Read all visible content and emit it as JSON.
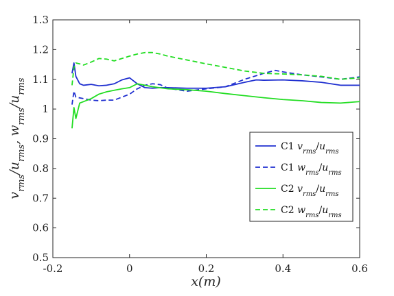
{
  "chart_data": {
    "type": "line",
    "xlabel": "x(m)",
    "ylabel": "v_rms/u_rms, w_rms/u_rms",
    "xlim": [
      -0.2,
      0.6
    ],
    "ylim": [
      0.5,
      1.3
    ],
    "xticks": [
      -0.2,
      0,
      0.2,
      0.4,
      0.6
    ],
    "xtick_labels": [
      "-0.2",
      "0",
      "0.2",
      "0.4",
      "0.6"
    ],
    "yticks": [
      0.5,
      0.6,
      0.7,
      0.8,
      0.9,
      1.0,
      1.1,
      1.2,
      1.3
    ],
    "ytick_labels": [
      "0.5",
      "0.6",
      "0.7",
      "0.8",
      "0.9",
      "1",
      "1.1",
      "1.2",
      "1.3"
    ],
    "grid": false,
    "legend_position": "bottom-right",
    "series": [
      {
        "name": "C1 v_rms/u_rms",
        "legend_prefix": "C1 ",
        "legend_base": "v",
        "legend_sub": "rms",
        "legend_den_base": "u",
        "legend_den_sub": "rms",
        "color": "#1f2fd0",
        "dash": "solid",
        "x": [
          -0.15,
          -0.145,
          -0.14,
          -0.13,
          -0.12,
          -0.1,
          -0.08,
          -0.06,
          -0.04,
          -0.02,
          0.0,
          0.02,
          0.04,
          0.06,
          0.08,
          0.1,
          0.15,
          0.2,
          0.25,
          0.3,
          0.33,
          0.35,
          0.4,
          0.45,
          0.5,
          0.55,
          0.6
        ],
        "y": [
          1.12,
          1.155,
          1.11,
          1.085,
          1.08,
          1.083,
          1.078,
          1.08,
          1.085,
          1.098,
          1.105,
          1.085,
          1.072,
          1.07,
          1.072,
          1.072,
          1.07,
          1.07,
          1.075,
          1.09,
          1.098,
          1.097,
          1.098,
          1.095,
          1.09,
          1.08,
          1.08
        ]
      },
      {
        "name": "C1 w_rms/u_rms",
        "legend_prefix": "C1 ",
        "legend_base": "w",
        "legend_sub": "rms",
        "legend_den_base": "u",
        "legend_den_sub": "rms",
        "color": "#1f2fd0",
        "dash": "dashed",
        "x": [
          -0.15,
          -0.145,
          -0.14,
          -0.12,
          -0.1,
          -0.08,
          -0.06,
          -0.04,
          -0.02,
          0.0,
          0.02,
          0.04,
          0.06,
          0.08,
          0.1,
          0.15,
          0.2,
          0.25,
          0.3,
          0.35,
          0.38,
          0.4,
          0.45,
          0.5,
          0.55,
          0.6
        ],
        "y": [
          1.015,
          1.06,
          1.04,
          1.035,
          1.03,
          1.028,
          1.03,
          1.03,
          1.04,
          1.05,
          1.068,
          1.08,
          1.085,
          1.082,
          1.07,
          1.06,
          1.068,
          1.075,
          1.1,
          1.12,
          1.13,
          1.125,
          1.115,
          1.108,
          1.1,
          1.108
        ]
      },
      {
        "name": "C2 v_rms/u_rms",
        "legend_prefix": "C2 ",
        "legend_base": "v",
        "legend_sub": "rms",
        "legend_den_base": "u",
        "legend_den_sub": "rms",
        "color": "#22dd22",
        "dash": "solid",
        "x": [
          -0.15,
          -0.145,
          -0.14,
          -0.13,
          -0.12,
          -0.1,
          -0.08,
          -0.06,
          -0.04,
          -0.02,
          0.0,
          0.02,
          0.04,
          0.06,
          0.1,
          0.15,
          0.2,
          0.25,
          0.3,
          0.35,
          0.4,
          0.45,
          0.5,
          0.55,
          0.6
        ],
        "y": [
          0.935,
          1.005,
          0.968,
          1.02,
          1.025,
          1.035,
          1.05,
          1.058,
          1.063,
          1.068,
          1.072,
          1.085,
          1.08,
          1.075,
          1.068,
          1.065,
          1.06,
          1.052,
          1.045,
          1.038,
          1.032,
          1.028,
          1.022,
          1.02,
          1.025
        ]
      },
      {
        "name": "C2 w_rms/u_rms",
        "legend_prefix": "C2 ",
        "legend_base": "w",
        "legend_sub": "rms",
        "legend_den_base": "u",
        "legend_den_sub": "rms",
        "color": "#22dd22",
        "dash": "dashed",
        "x": [
          -0.15,
          -0.145,
          -0.14,
          -0.13,
          -0.12,
          -0.1,
          -0.08,
          -0.06,
          -0.04,
          -0.02,
          0.0,
          0.02,
          0.04,
          0.06,
          0.08,
          0.1,
          0.15,
          0.2,
          0.25,
          0.3,
          0.35,
          0.4,
          0.45,
          0.5,
          0.55,
          0.6
        ],
        "y": [
          1.08,
          1.14,
          1.155,
          1.152,
          1.148,
          1.158,
          1.17,
          1.168,
          1.162,
          1.17,
          1.178,
          1.185,
          1.19,
          1.19,
          1.185,
          1.178,
          1.165,
          1.152,
          1.14,
          1.128,
          1.12,
          1.118,
          1.115,
          1.11,
          1.1,
          1.105
        ]
      }
    ]
  }
}
